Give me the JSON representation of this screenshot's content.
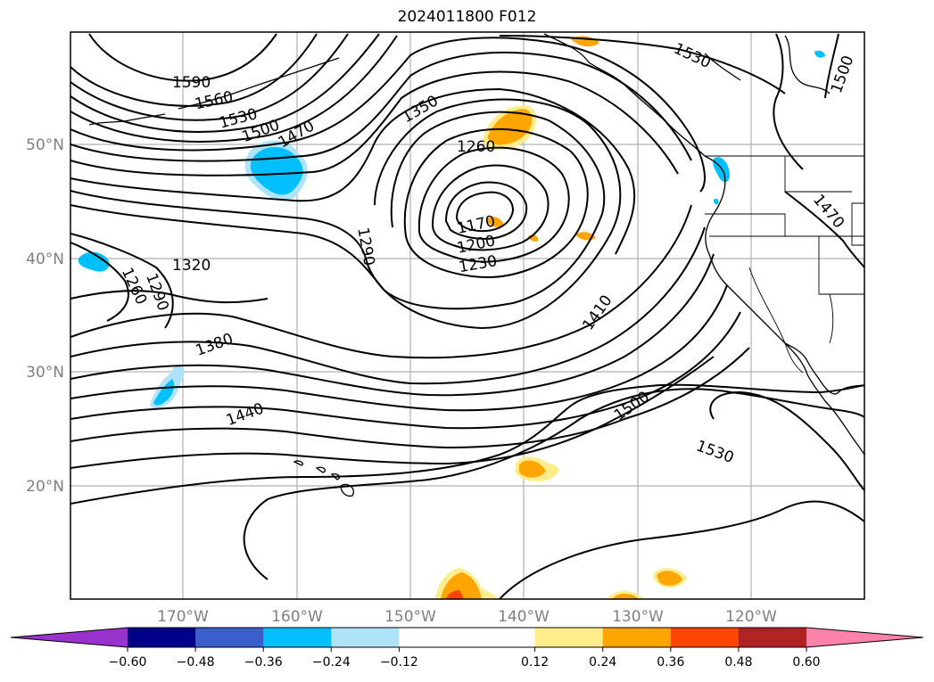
{
  "title": "2024011800 F012",
  "contour_labels": [
    "1590",
    "1560",
    "1530",
    "1500",
    "1470",
    "1350",
    "1260",
    "1170",
    "1200",
    "1230",
    "1290",
    "1320",
    "1260",
    "1290",
    "1380",
    "1440",
    "1410",
    "1500",
    "1530",
    "1530",
    "1500",
    "1470"
  ],
  "lat_labels": [
    "50°N",
    "40°N",
    "30°N",
    "20°N"
  ],
  "lon_labels": [
    "170°W",
    "160°W",
    "150°W",
    "140°W",
    "130°W",
    "120°W"
  ],
  "colorbar": {
    "colors": [
      "#9932cc",
      "#00008b",
      "#3a5fcd",
      "#00bfff",
      "#afe3fa",
      "#ffffff",
      "#ffffff",
      "#ffec8b",
      "#ffa500",
      "#ff4500",
      "#b22222",
      "#ff82ab"
    ],
    "ticks": [
      "−0.60",
      "−0.48",
      "−0.36",
      "−0.24",
      "−0.12",
      "0.12",
      "0.24",
      "0.36",
      "0.48",
      "0.60"
    ]
  }
}
